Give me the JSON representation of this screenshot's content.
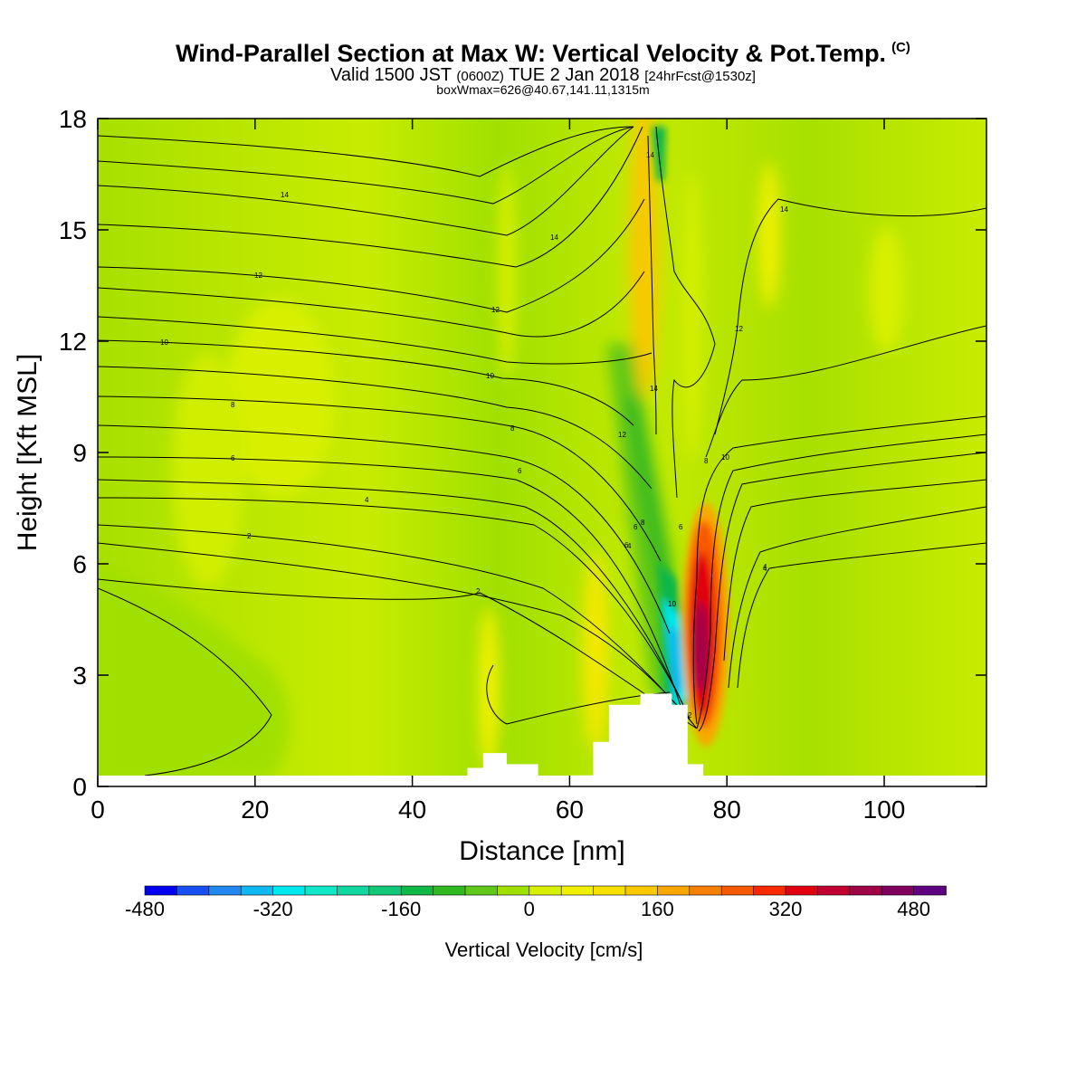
{
  "header": {
    "title": "Wind-Parallel Section at Max W: Vertical Velocity & Pot.Temp.",
    "copyright": "(C)",
    "valid_prefix": "Valid 1500 JST",
    "valid_utc": "(0600Z)",
    "valid_date": "TUE 2 Jan 2018",
    "forecast": "[24hrFcst@1530z]",
    "boxinfo": "boxWmax=626@40.67,141.11,1315m"
  },
  "chart_data": {
    "type": "heatmap",
    "title": "Wind-Parallel Section at Max W: Vertical Velocity & Pot.Temp.",
    "xlabel": "Distance [nm]",
    "ylabel": "Height [Kft MSL]",
    "xlim": [
      0,
      113
    ],
    "ylim": [
      0,
      18
    ],
    "x_ticks": [
      "0",
      "20",
      "40",
      "60",
      "80",
      "100"
    ],
    "y_ticks": [
      "0",
      "3",
      "6",
      "9",
      "12",
      "15",
      "18"
    ],
    "colorbar": {
      "label": "Vertical Velocity [cm/s]",
      "range": [
        -480,
        520
      ],
      "tick_labels": [
        "-480",
        "-320",
        "-160",
        "0",
        "160",
        "320",
        "480"
      ],
      "colors": [
        "#0000f0",
        "#1650f0",
        "#2288f0",
        "#10b8f0",
        "#00e8f0",
        "#10e8c8",
        "#10d8a0",
        "#10c878",
        "#10b848",
        "#30b820",
        "#60c818",
        "#a0e000",
        "#d8f000",
        "#f0f000",
        "#f8e000",
        "#f8c800",
        "#f8a800",
        "#f88000",
        "#f85800",
        "#f82800",
        "#e00010",
        "#c00030",
        "#a00048",
        "#800060",
        "#600080"
      ]
    },
    "vertical_velocity_features_cm_s": [
      {
        "feature": "strong updraft",
        "x_nm": 77.5,
        "z_kft": 4.5,
        "w": 520
      },
      {
        "feature": "downdraft",
        "x_nm": 73.5,
        "z_kft": 4.0,
        "w": -320
      },
      {
        "feature": "upper updraft column",
        "x_nm": 69.5,
        "z_kft": 16.0,
        "w": 200
      },
      {
        "feature": "tilted downdraft band",
        "x_nm": 66.5,
        "z_kft": 9.5,
        "w": -150
      },
      {
        "feature": "weak updraft",
        "x_nm": 51,
        "z_kft": 3.5,
        "w": 80
      },
      {
        "feature": "weak updraft",
        "x_nm": 64,
        "z_kft": 4.5,
        "w": 100
      }
    ],
    "potential_temperature_contour_labels": [
      "14",
      "14",
      "12",
      "10",
      "8",
      "6",
      "4",
      "2",
      "14",
      "12",
      "10",
      "8",
      "6",
      "14",
      "12",
      "10",
      "8",
      "6",
      "4",
      "2",
      "6",
      "4",
      "2",
      "14",
      "12",
      "10",
      "8",
      "6",
      "4"
    ],
    "terrain_height_kft": [
      {
        "x": 47,
        "z": 0.5
      },
      {
        "x": 49,
        "z": 0.9
      },
      {
        "x": 52,
        "z": 0.6
      },
      {
        "x": 56,
        "z": 0
      },
      {
        "x": 60,
        "z": 0.3
      },
      {
        "x": 63,
        "z": 1.2
      },
      {
        "x": 65,
        "z": 2.2
      },
      {
        "x": 69,
        "z": 2.5
      },
      {
        "x": 73,
        "z": 2.2
      },
      {
        "x": 75,
        "z": 0.6
      },
      {
        "x": 77,
        "z": 0.3
      }
    ]
  }
}
